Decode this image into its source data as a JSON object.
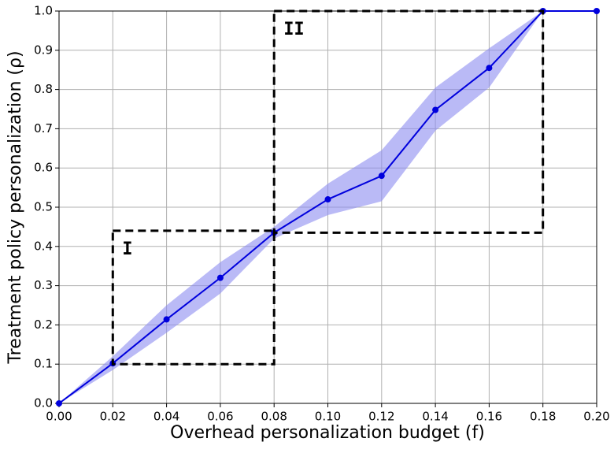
{
  "chart_data": {
    "type": "line",
    "xlabel": "Overhead personalization budget (f)",
    "ylabel": "Treatment policy personalization (ρ)",
    "x": [
      0,
      0.02,
      0.04,
      0.06,
      0.08,
      0.1,
      0.12,
      0.14,
      0.16,
      0.18,
      0.2
    ],
    "series": [
      {
        "color": "#0000dd",
        "band_color": "#8c8cf0",
        "values": [
          0,
          0.102,
          0.214,
          0.32,
          0.435,
          0.52,
          0.58,
          0.748,
          0.855,
          1.0,
          1.0
        ],
        "lower": [
          0,
          0.085,
          0.18,
          0.28,
          0.42,
          0.48,
          0.515,
          0.695,
          0.805,
          1.0,
          1.0
        ],
        "upper": [
          0,
          0.12,
          0.25,
          0.36,
          0.45,
          0.56,
          0.645,
          0.805,
          0.905,
          1.0,
          1.0
        ]
      }
    ],
    "regions": [
      {
        "label": "I",
        "x": [
          0.02,
          0.08
        ],
        "y": [
          0.1,
          0.44
        ]
      },
      {
        "label": "II",
        "x": [
          0.08,
          0.18
        ],
        "y": [
          0.435,
          1.0
        ]
      }
    ],
    "xlim": [
      0,
      0.2
    ],
    "ylim": [
      0,
      1
    ],
    "xticks": [
      {
        "value": 0,
        "label": "0.00"
      },
      {
        "value": 0.02,
        "label": "0.02"
      },
      {
        "value": 0.04,
        "label": "0.04"
      },
      {
        "value": 0.06,
        "label": "0.06"
      },
      {
        "value": 0.08,
        "label": "0.08"
      },
      {
        "value": 0.1,
        "label": "0.10"
      },
      {
        "value": 0.12,
        "label": "0.12"
      },
      {
        "value": 0.14,
        "label": "0.14"
      },
      {
        "value": 0.16,
        "label": "0.16"
      },
      {
        "value": 0.18,
        "label": "0.18"
      },
      {
        "value": 0.2,
        "label": "0.20"
      }
    ],
    "yticks": [
      {
        "value": 0,
        "label": "0.0"
      },
      {
        "value": 0.1,
        "label": "0.1"
      },
      {
        "value": 0.2,
        "label": "0.2"
      },
      {
        "value": 0.3,
        "label": "0.3"
      },
      {
        "value": 0.4,
        "label": "0.4"
      },
      {
        "value": 0.5,
        "label": "0.5"
      },
      {
        "value": 0.6,
        "label": "0.6"
      },
      {
        "value": 0.7,
        "label": "0.7"
      },
      {
        "value": 0.8,
        "label": "0.8"
      },
      {
        "value": 0.9,
        "label": "0.9"
      },
      {
        "value": 1,
        "label": "1.0"
      }
    ],
    "grid": true
  }
}
